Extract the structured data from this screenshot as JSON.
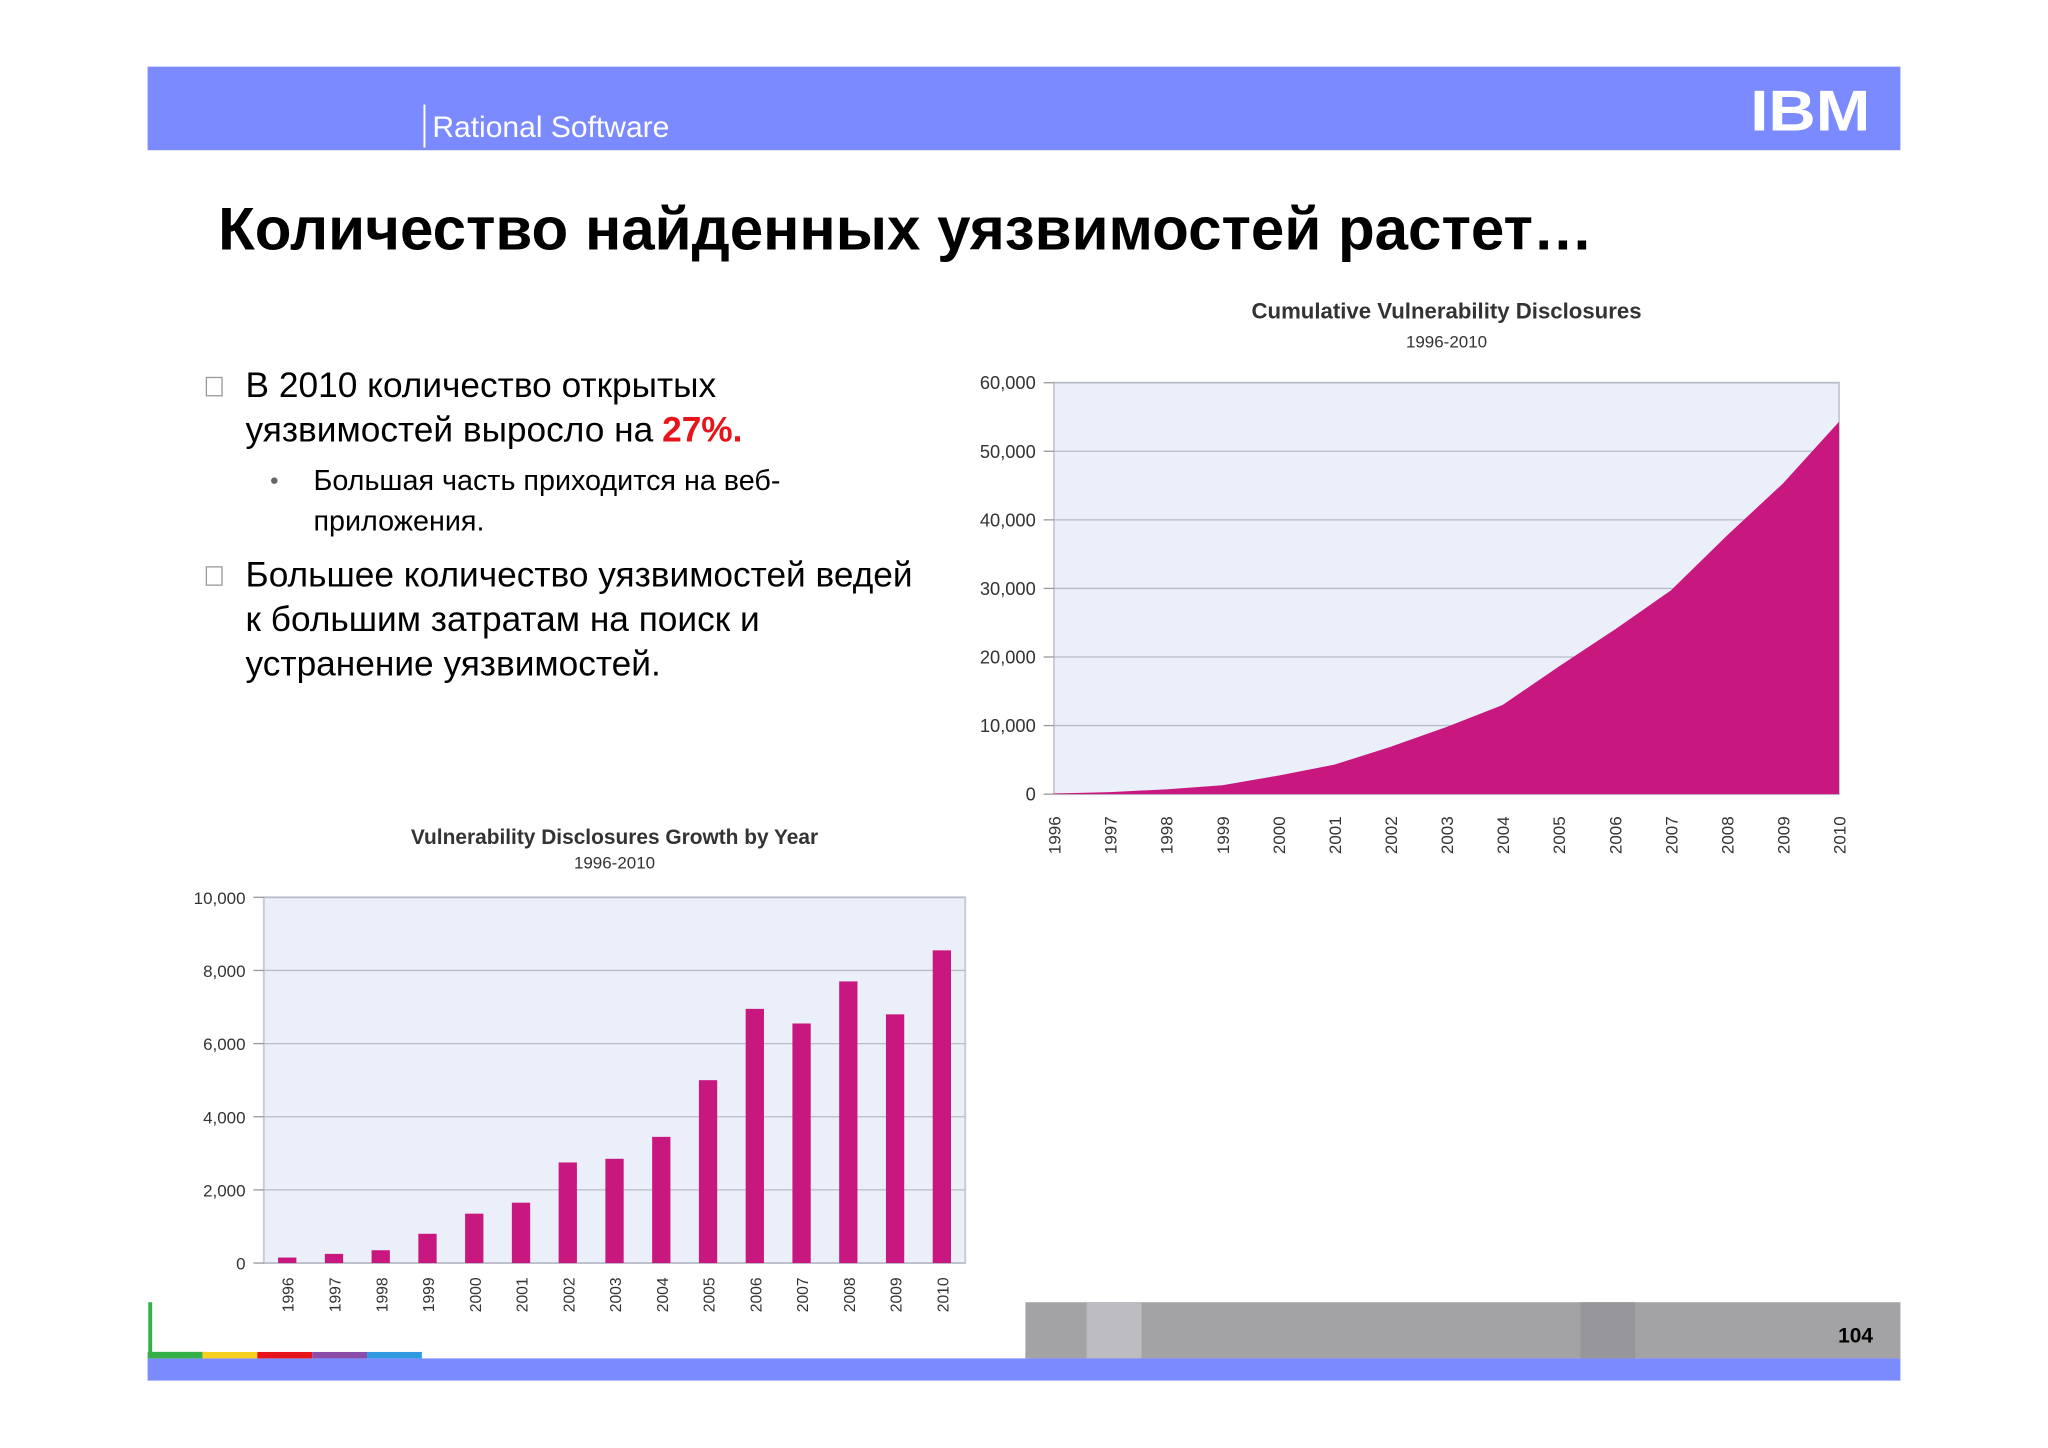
{
  "header": {
    "product": "Rational Software",
    "logo": "IBM"
  },
  "title": "Количество найденных уязвимостей растет…",
  "bullets": [
    {
      "text": "В 2010 количество открытых уязвимостей выросло на",
      "highlight": "27%.",
      "sub": [
        "Большая часть приходится на веб-приложения."
      ]
    },
    {
      "text": "Большее количество уязвимостей ведей к большим затратам на поиск и устранение уязвимостей."
    }
  ],
  "page_number": "104",
  "chart_data": [
    {
      "type": "area",
      "title": "Cumulative Vulnerability Disclosures",
      "subtitle": "1996-2010",
      "categories": [
        "1996",
        "1997",
        "1998",
        "1999",
        "2000",
        "2001",
        "2002",
        "2003",
        "2004",
        "2005",
        "2006",
        "2007",
        "2008",
        "2009",
        "2010"
      ],
      "values": [
        100,
        300,
        700,
        1300,
        2700,
        4300,
        6900,
        9800,
        13000,
        18600,
        24000,
        29700,
        37700,
        45300,
        54300
      ],
      "color": "#c8177e",
      "ylim": [
        0,
        60000
      ],
      "yticks": [
        0,
        {
          "value": 10000,
          "label": "10,000"
        },
        {
          "value": 20000,
          "label": "20,000"
        },
        {
          "value": 30000,
          "label": "30,000"
        },
        {
          "value": 40000,
          "label": "40,000"
        },
        {
          "value": 50000,
          "label": "50,000"
        },
        {
          "value": 60000,
          "label": "60,000"
        }
      ],
      "grid": true
    },
    {
      "type": "bar",
      "title": "Vulnerability Disclosures Growth by Year",
      "subtitle": "1996-2010",
      "categories": [
        "1996",
        "1997",
        "1998",
        "1999",
        "2000",
        "2001",
        "2002",
        "2003",
        "2004",
        "2005",
        "2006",
        "2007",
        "2008",
        "2009",
        "2010"
      ],
      "values": [
        150,
        250,
        350,
        800,
        1350,
        1650,
        2750,
        2850,
        3450,
        5000,
        6950,
        6550,
        7700,
        6800,
        8550
      ],
      "color": "#c8177e",
      "ylim": [
        0,
        10000
      ],
      "yticks": [
        0,
        {
          "value": 2000,
          "label": "2,000"
        },
        {
          "value": 4000,
          "label": "4,000"
        },
        {
          "value": 6000,
          "label": "6,000"
        },
        {
          "value": 8000,
          "label": "8,000"
        },
        {
          "value": 10000,
          "label": "10,000"
        }
      ],
      "grid": true
    }
  ]
}
